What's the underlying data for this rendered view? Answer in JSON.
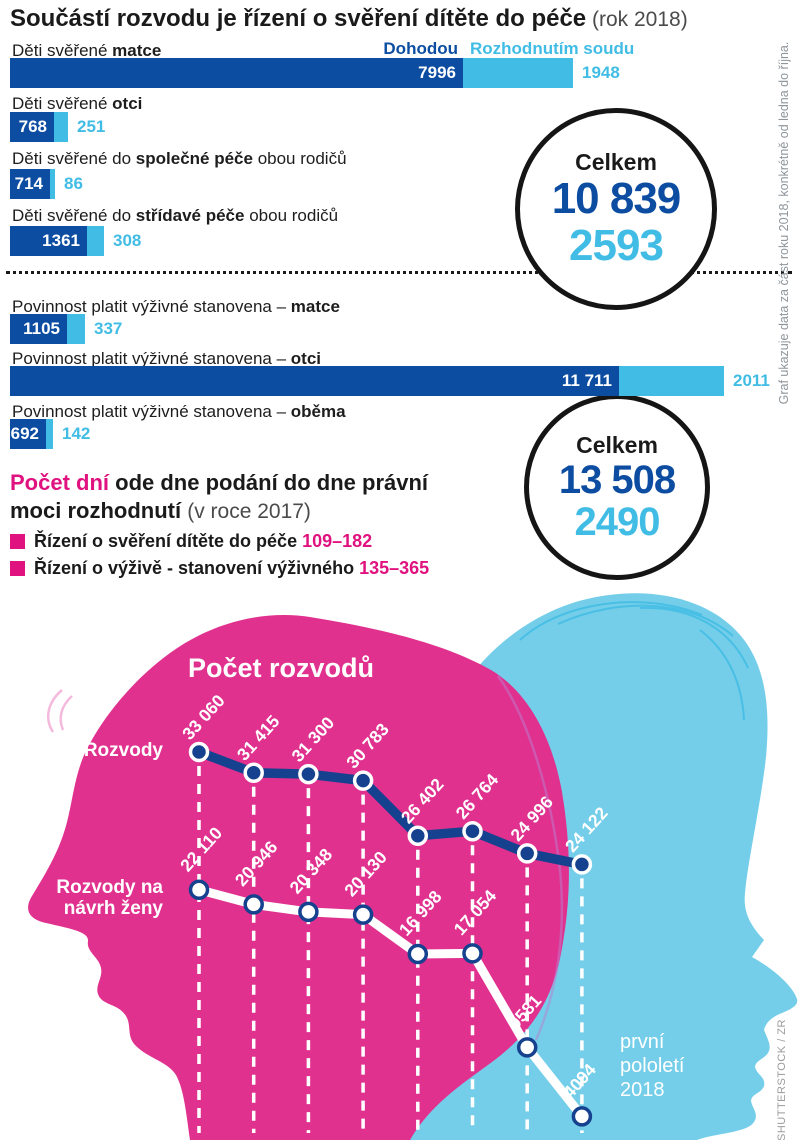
{
  "header": {
    "title": "Součástí rozvodu je řízení o svěření dítěte do péče",
    "title_note": " (rok 2018)"
  },
  "legend": {
    "agreement": "Dohodou",
    "court": "Rozhodnutím soudu"
  },
  "colors": {
    "dark_blue": "#0c4da2",
    "light_blue": "#41bde5",
    "pink_accent": "#e0127f",
    "head_pink": "#e1318f",
    "head_blue": "#74cee9",
    "line_blue": "#16418f"
  },
  "chart_data": [
    {
      "type": "bar",
      "title": "Součástí rozvodu je řízení o svěření dítěte do péče (rok 2018)",
      "legend": [
        "Dohodou",
        "Rozhodnutím soudu"
      ],
      "rows": [
        {
          "label_pre": "Děti svěřené ",
          "label_bold": "matce",
          "label_post": "",
          "dohodou": 7996,
          "soudem": 1948,
          "dohodou_label": "7996",
          "soudem_label": "1948"
        },
        {
          "label_pre": "Děti svěřené ",
          "label_bold": "otci",
          "label_post": "",
          "dohodou": 768,
          "soudem": 251,
          "dohodou_label": "768",
          "soudem_label": "251"
        },
        {
          "label_pre": "Děti svěřené do ",
          "label_bold": "společné péče",
          "label_post": " obou rodičů",
          "dohodou": 714,
          "soudem": 86,
          "dohodou_label": "714",
          "soudem_label": "86"
        },
        {
          "label_pre": "Děti svěřené do ",
          "label_bold": "střídavé péče",
          "label_post": " obou rodičů",
          "dohodou": 1361,
          "soudem": 308,
          "dohodou_label": "1361",
          "soudem_label": "308"
        }
      ],
      "total": {
        "label": "Celkem",
        "dohodou": "10 839",
        "soudem": "2593"
      }
    },
    {
      "type": "bar",
      "rows": [
        {
          "label_pre": "Povinnost platit výživné stanovena – ",
          "label_bold": "matce",
          "label_post": "",
          "dohodou": 1105,
          "soudem": 337,
          "dohodou_label": "1105",
          "soudem_label": "337"
        },
        {
          "label_pre": "Povinnost platit výživné stanovena – ",
          "label_bold": "otci",
          "label_post": "",
          "dohodou": 11711,
          "soudem": 2011,
          "dohodou_label": "11 711",
          "soudem_label": "2011"
        },
        {
          "label_pre": "Povinnost platit výživné stanovena – ",
          "label_bold": "oběma",
          "label_post": "",
          "dohodou": 692,
          "soudem": 142,
          "dohodou_label": "692",
          "soudem_label": "142"
        }
      ],
      "total": {
        "label": "Celkem",
        "dohodou": "13 508",
        "soudem": "2490"
      }
    },
    {
      "type": "line",
      "title": "Počet rozvodů",
      "series": [
        {
          "name": "Rozvody",
          "values": [
            33060,
            31415,
            31300,
            30783,
            26402,
            26764,
            24996,
            24122
          ],
          "labels": [
            "33 060",
            "31 415",
            "31 300",
            "30 783",
            "26 402",
            "26 764",
            "24 996",
            "24 122"
          ],
          "color": "#16418f"
        },
        {
          "name": "Rozvody na návrh ženy",
          "name_lines": [
            "Rozvody na",
            "návrh ženy"
          ],
          "values": [
            22110,
            20946,
            20348,
            20130,
            16998,
            17054,
            9581,
            4094
          ],
          "labels": [
            "22 110",
            "20 946",
            "20 348",
            "20 130",
            "16 998",
            "17 054",
            "9581",
            "4094"
          ],
          "color": "#ffffff"
        }
      ],
      "annotation": "první pololetí 2018",
      "annotation_lines": [
        "první",
        "pololetí",
        "2018"
      ]
    }
  ],
  "days": {
    "heading_accent": "Počet dní",
    "heading_rest": " ode dne podání do dne právní",
    "line2_bold": "moci rozhodnutí ",
    "line2_note": "(v roce 2017)",
    "items": [
      {
        "text": "Řízení o svěření dítěte do péče",
        "range": "109–182"
      },
      {
        "text": "Řízení o výživě - stanovení výživného",
        "range": "135–365"
      }
    ]
  },
  "captions": {
    "side": "Graf ukazuje data za část roku 2018, konkrétně od ledna do října.",
    "credit": "SHUTTERSTOCK / ZR"
  }
}
